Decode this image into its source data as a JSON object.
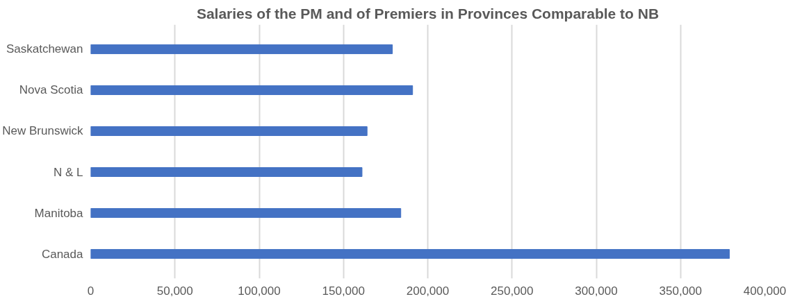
{
  "chart_data": {
    "type": "bar",
    "orientation": "horizontal",
    "title": "Salaries of the PM and of Premiers in Provinces Comparable to NB",
    "categories": [
      "Saskatchewan",
      "Nova Scotia",
      "New Brunswick",
      "N & L",
      "Manitoba",
      "Canada"
    ],
    "values": [
      179000,
      191000,
      164000,
      161000,
      184000,
      379000
    ],
    "color": "#4472c4",
    "xlim": [
      0,
      400000
    ],
    "xticks": [
      {
        "value": 0,
        "label": "0"
      },
      {
        "value": 50000,
        "label": "50,000"
      },
      {
        "value": 100000,
        "label": "100,000"
      },
      {
        "value": 150000,
        "label": "150,000"
      },
      {
        "value": 200000,
        "label": "200,000"
      },
      {
        "value": 250000,
        "label": "250,000"
      },
      {
        "value": 300000,
        "label": "300,000"
      },
      {
        "value": 350000,
        "label": "350,000"
      },
      {
        "value": 400000,
        "label": "400,000"
      }
    ],
    "grid": "x"
  }
}
